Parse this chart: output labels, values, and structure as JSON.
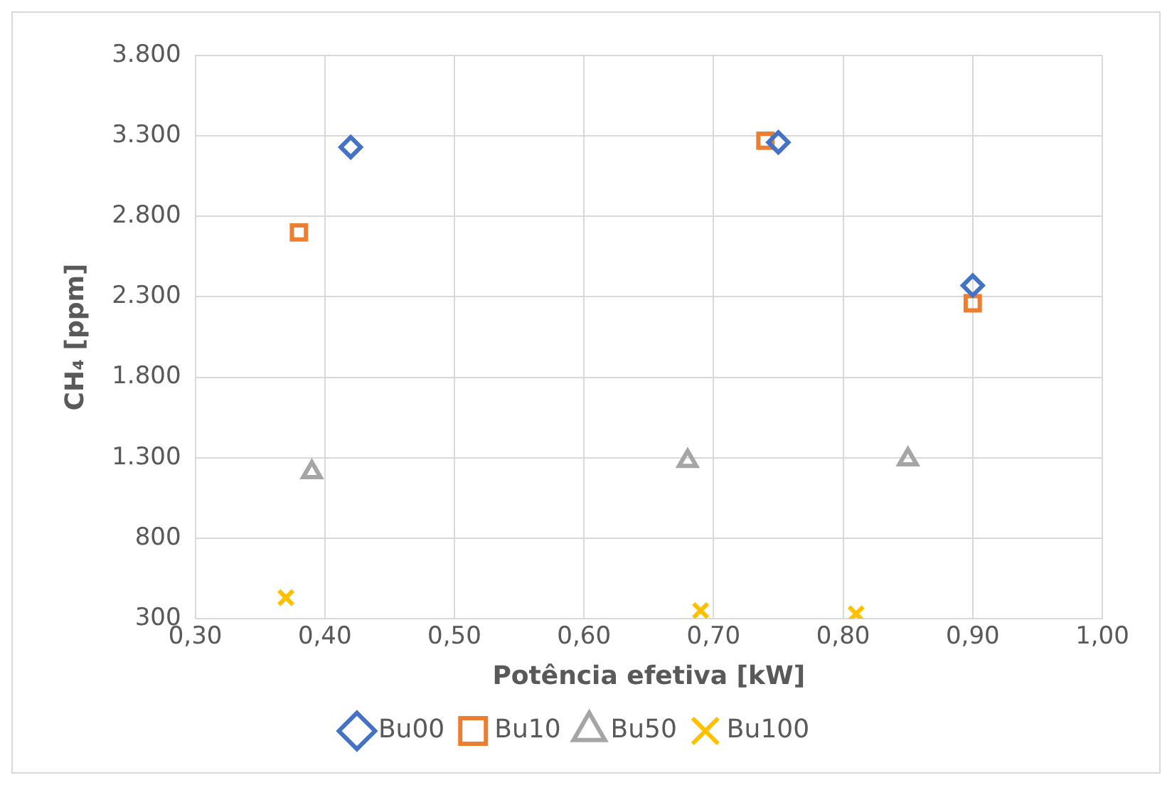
{
  "chart_data": {
    "type": "scatter",
    "xlabel": "Potência efetiva [kW]",
    "ylabel": "CH₄ [ppm]",
    "xlim": [
      0.3,
      1.0
    ],
    "xticks": [
      {
        "value": 0.3,
        "label": "0,30"
      },
      {
        "value": 0.4,
        "label": "0,40"
      },
      {
        "value": 0.5,
        "label": "0,50"
      },
      {
        "value": 0.6,
        "label": "0,60"
      },
      {
        "value": 0.7,
        "label": "0,70"
      },
      {
        "value": 0.8,
        "label": "0,80"
      },
      {
        "value": 0.9,
        "label": "0,90"
      },
      {
        "value": 1.0,
        "label": "1,00"
      }
    ],
    "ylim": [
      300,
      3800
    ],
    "yticks": [
      300,
      800,
      {
        "value": 1300,
        "label": "1.300"
      },
      {
        "value": 1800,
        "label": "1.800"
      },
      {
        "value": 2300,
        "label": "2.300"
      },
      {
        "value": 2800,
        "label": "2.800"
      },
      {
        "value": 3300,
        "label": "3.300"
      },
      {
        "value": 3800,
        "label": "3.800"
      }
    ],
    "grid": true,
    "legend": "bottom",
    "series": [
      {
        "name": "Bu00",
        "color": "#4472c4",
        "marker": "diamond",
        "x": [
          0.42,
          0.75,
          0.9
        ],
        "values": [
          3230,
          3260,
          2370
        ]
      },
      {
        "name": "Bu10",
        "color": "#ed7d31",
        "marker": "square",
        "x": [
          0.38,
          0.74,
          0.9
        ],
        "values": [
          2700,
          3270,
          2260
        ]
      },
      {
        "name": "Bu50",
        "color": "#a5a5a5",
        "marker": "triangle",
        "x": [
          0.39,
          0.68,
          0.85
        ],
        "values": [
          1210,
          1280,
          1290
        ]
      },
      {
        "name": "Bu100",
        "color": "#ffc000",
        "marker": "cross",
        "x": [
          0.37,
          0.69,
          0.81
        ],
        "values": [
          430,
          350,
          330
        ]
      }
    ]
  }
}
